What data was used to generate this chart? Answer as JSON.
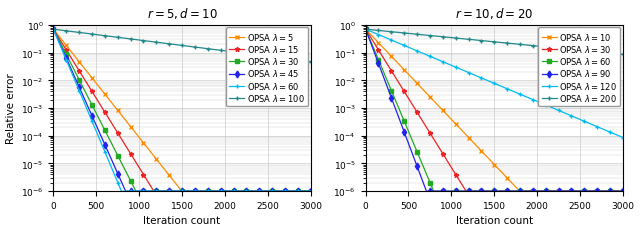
{
  "left_title": "$r = 5, d = 10$",
  "right_title": "$r = 10, d = 20$",
  "xlabel": "Iteration count",
  "ylabel": "Relative error",
  "xlim": [
    0,
    3000
  ],
  "ylim_log": [
    -6,
    0
  ],
  "left_series": [
    {
      "label": "OPSA $\\lambda = 5$",
      "color": "#FF8C00",
      "marker": "x",
      "decay": 0.009,
      "floor": 1e-06,
      "start": 0.7
    },
    {
      "label": "OPSA $\\lambda = 15$",
      "color": "#EE2222",
      "marker": "*",
      "decay": 0.0115,
      "floor": 1e-06,
      "start": 0.7
    },
    {
      "label": "OPSA $\\lambda = 30$",
      "color": "#22AA22",
      "marker": "s",
      "decay": 0.014,
      "floor": 1e-06,
      "start": 0.7
    },
    {
      "label": "OPSA $\\lambda = 45$",
      "color": "#2222EE",
      "marker": "d",
      "decay": 0.016,
      "floor": 1e-06,
      "start": 0.7
    },
    {
      "label": "OPSA $\\lambda = 60$",
      "color": "#00BBEE",
      "marker": "+",
      "decay": 0.017,
      "floor": 1e-06,
      "start": 0.7
    },
    {
      "label": "OPSA $\\lambda = 100$",
      "color": "#228888",
      "marker": "+",
      "decay": 0.0009,
      "floor": 0.0035,
      "start": 0.7
    }
  ],
  "right_series": [
    {
      "label": "OPSA $\\lambda = 10$",
      "color": "#FF8C00",
      "marker": "x",
      "decay": 0.0075,
      "floor": 1e-06,
      "start": 0.7
    },
    {
      "label": "OPSA $\\lambda = 30$",
      "color": "#EE2222",
      "marker": "*",
      "decay": 0.0115,
      "floor": 1e-06,
      "start": 0.7
    },
    {
      "label": "OPSA $\\lambda = 60$",
      "color": "#22AA22",
      "marker": "s",
      "decay": 0.017,
      "floor": 1e-06,
      "start": 0.7
    },
    {
      "label": "OPSA $\\lambda = 90$",
      "color": "#2222EE",
      "marker": "d",
      "decay": 0.019,
      "floor": 1e-06,
      "start": 0.7
    },
    {
      "label": "OPSA $\\lambda = 120$",
      "color": "#00BBEE",
      "marker": "+",
      "decay": 0.003,
      "floor": 6e-05,
      "start": 0.7
    },
    {
      "label": "OPSA $\\lambda = 200$",
      "color": "#228888",
      "marker": "+",
      "decay": 0.0007,
      "floor": 0.0035,
      "start": 0.7
    }
  ],
  "n_points": 3001,
  "marker_every": 150,
  "marker_size": 3.5,
  "line_width": 0.9,
  "background_color": "#ffffff",
  "grid_color": "#cccccc",
  "title_fontsize": 8.5,
  "label_fontsize": 7.5,
  "tick_fontsize": 6.5,
  "legend_fontsize": 6.0
}
